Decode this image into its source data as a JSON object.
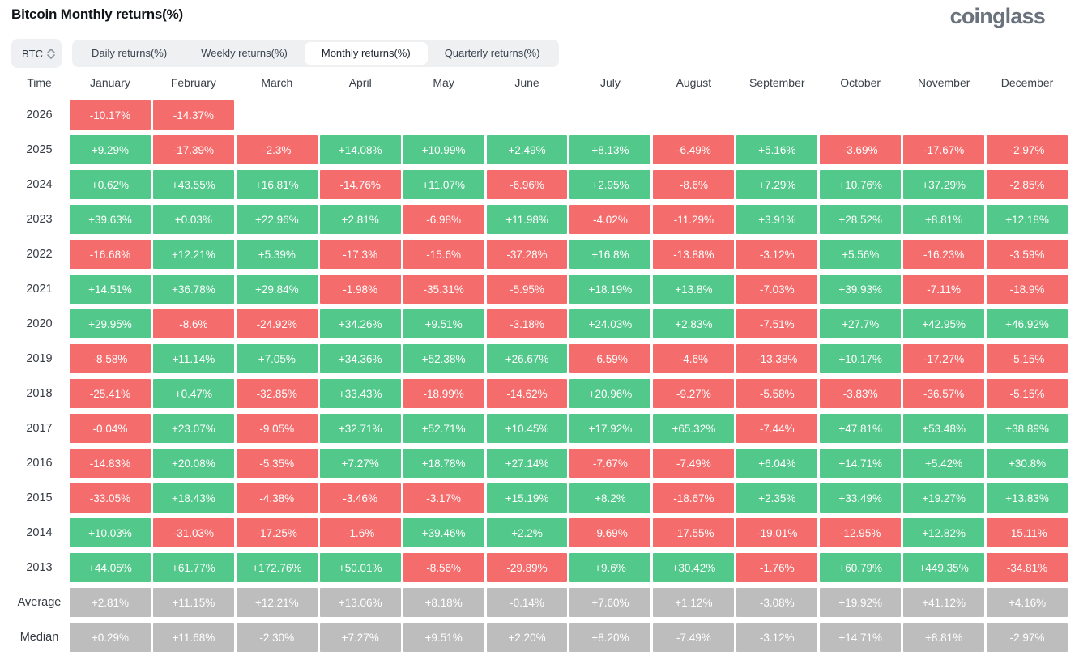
{
  "header": {
    "title": "Bitcoin Monthly returns(%)",
    "logo": "coinglass"
  },
  "controls": {
    "coin_select": {
      "value": "BTC"
    },
    "tabs": [
      {
        "label": "Daily returns(%)",
        "active": false
      },
      {
        "label": "Weekly returns(%)",
        "active": false
      },
      {
        "label": "Monthly returns(%)",
        "active": true
      },
      {
        "label": "Quarterly returns(%)",
        "active": false
      }
    ]
  },
  "colors": {
    "positive": "#52C98B",
    "negative": "#F56C6C",
    "aggregate": "#BDBDBD"
  },
  "chart_data": {
    "type": "heatmap",
    "title": "Bitcoin Monthly returns(%)",
    "columns": [
      "Time",
      "January",
      "February",
      "March",
      "April",
      "May",
      "June",
      "July",
      "August",
      "September",
      "October",
      "November",
      "December"
    ],
    "rows": [
      {
        "label": "2026",
        "kind": "year",
        "values": [
          "-10.17%",
          "-14.37%",
          "",
          "",
          "",
          "",
          "",
          "",
          "",
          "",
          "",
          ""
        ]
      },
      {
        "label": "2025",
        "kind": "year",
        "values": [
          "+9.29%",
          "-17.39%",
          "-2.3%",
          "+14.08%",
          "+10.99%",
          "+2.49%",
          "+8.13%",
          "-6.49%",
          "+5.16%",
          "-3.69%",
          "-17.67%",
          "-2.97%"
        ]
      },
      {
        "label": "2024",
        "kind": "year",
        "values": [
          "+0.62%",
          "+43.55%",
          "+16.81%",
          "-14.76%",
          "+11.07%",
          "-6.96%",
          "+2.95%",
          "-8.6%",
          "+7.29%",
          "+10.76%",
          "+37.29%",
          "-2.85%"
        ]
      },
      {
        "label": "2023",
        "kind": "year",
        "values": [
          "+39.63%",
          "+0.03%",
          "+22.96%",
          "+2.81%",
          "-6.98%",
          "+11.98%",
          "-4.02%",
          "-11.29%",
          "+3.91%",
          "+28.52%",
          "+8.81%",
          "+12.18%"
        ]
      },
      {
        "label": "2022",
        "kind": "year",
        "values": [
          "-16.68%",
          "+12.21%",
          "+5.39%",
          "-17.3%",
          "-15.6%",
          "-37.28%",
          "+16.8%",
          "-13.88%",
          "-3.12%",
          "+5.56%",
          "-16.23%",
          "-3.59%"
        ]
      },
      {
        "label": "2021",
        "kind": "year",
        "values": [
          "+14.51%",
          "+36.78%",
          "+29.84%",
          "-1.98%",
          "-35.31%",
          "-5.95%",
          "+18.19%",
          "+13.8%",
          "-7.03%",
          "+39.93%",
          "-7.11%",
          "-18.9%"
        ]
      },
      {
        "label": "2020",
        "kind": "year",
        "values": [
          "+29.95%",
          "-8.6%",
          "-24.92%",
          "+34.26%",
          "+9.51%",
          "-3.18%",
          "+24.03%",
          "+2.83%",
          "-7.51%",
          "+27.7%",
          "+42.95%",
          "+46.92%"
        ]
      },
      {
        "label": "2019",
        "kind": "year",
        "values": [
          "-8.58%",
          "+11.14%",
          "+7.05%",
          "+34.36%",
          "+52.38%",
          "+26.67%",
          "-6.59%",
          "-4.6%",
          "-13.38%",
          "+10.17%",
          "-17.27%",
          "-5.15%"
        ]
      },
      {
        "label": "2018",
        "kind": "year",
        "values": [
          "-25.41%",
          "+0.47%",
          "-32.85%",
          "+33.43%",
          "-18.99%",
          "-14.62%",
          "+20.96%",
          "-9.27%",
          "-5.58%",
          "-3.83%",
          "-36.57%",
          "-5.15%"
        ]
      },
      {
        "label": "2017",
        "kind": "year",
        "values": [
          "-0.04%",
          "+23.07%",
          "-9.05%",
          "+32.71%",
          "+52.71%",
          "+10.45%",
          "+17.92%",
          "+65.32%",
          "-7.44%",
          "+47.81%",
          "+53.48%",
          "+38.89%"
        ]
      },
      {
        "label": "2016",
        "kind": "year",
        "values": [
          "-14.83%",
          "+20.08%",
          "-5.35%",
          "+7.27%",
          "+18.78%",
          "+27.14%",
          "-7.67%",
          "-7.49%",
          "+6.04%",
          "+14.71%",
          "+5.42%",
          "+30.8%"
        ]
      },
      {
        "label": "2015",
        "kind": "year",
        "values": [
          "-33.05%",
          "+18.43%",
          "-4.38%",
          "-3.46%",
          "-3.17%",
          "+15.19%",
          "+8.2%",
          "-18.67%",
          "+2.35%",
          "+33.49%",
          "+19.27%",
          "+13.83%"
        ]
      },
      {
        "label": "2014",
        "kind": "year",
        "values": [
          "+10.03%",
          "-31.03%",
          "-17.25%",
          "-1.6%",
          "+39.46%",
          "+2.2%",
          "-9.69%",
          "-17.55%",
          "-19.01%",
          "-12.95%",
          "+12.82%",
          "-15.11%"
        ]
      },
      {
        "label": "2013",
        "kind": "year",
        "values": [
          "+44.05%",
          "+61.77%",
          "+172.76%",
          "+50.01%",
          "-8.56%",
          "-29.89%",
          "+9.6%",
          "+30.42%",
          "-1.76%",
          "+60.79%",
          "+449.35%",
          "-34.81%"
        ]
      },
      {
        "label": "Average",
        "kind": "aggregate",
        "values": [
          "+2.81%",
          "+11.15%",
          "+12.21%",
          "+13.06%",
          "+8.18%",
          "-0.14%",
          "+7.60%",
          "+1.12%",
          "-3.08%",
          "+19.92%",
          "+41.12%",
          "+4.16%"
        ]
      },
      {
        "label": "Median",
        "kind": "aggregate",
        "values": [
          "+0.29%",
          "+11.68%",
          "-2.30%",
          "+7.27%",
          "+9.51%",
          "+2.20%",
          "+8.20%",
          "-7.49%",
          "-3.12%",
          "+14.71%",
          "+8.81%",
          "-2.97%"
        ]
      }
    ]
  }
}
